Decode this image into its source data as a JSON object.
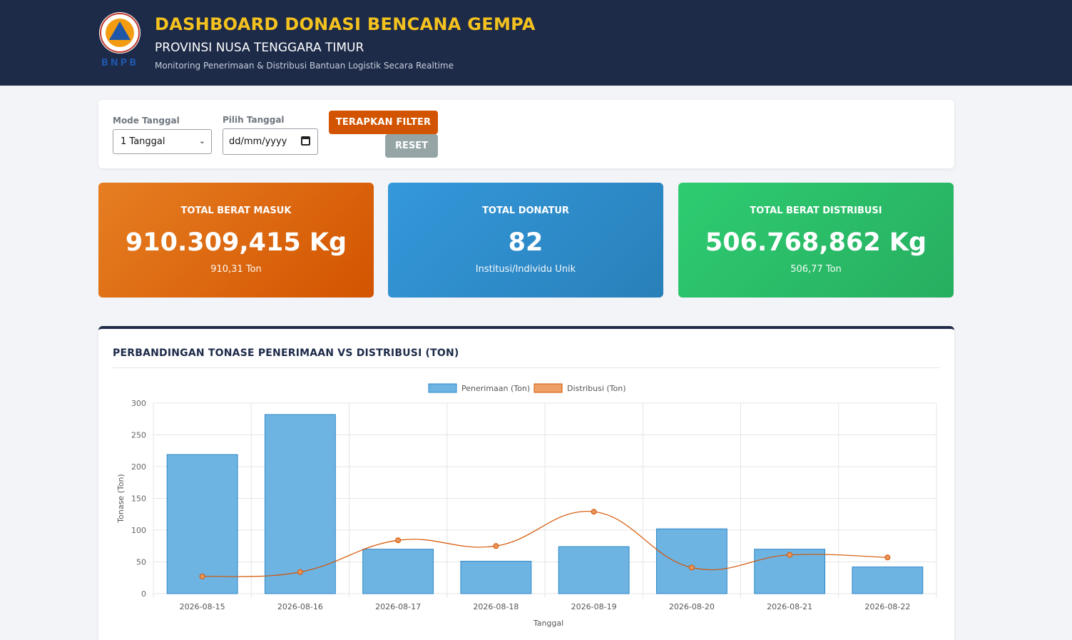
{
  "header": {
    "logo_text": "BNPB",
    "logo_ring_text": "BADAN NASIONAL PENANGGULANGAN BENCANA",
    "title": "DASHBOARD DONASI BENCANA GEMPA",
    "subtitle": "PROVINSI NUSA TENGGARA TIMUR",
    "tagline": "Monitoring Penerimaan & Distribusi Bantuan Logistik Secara Realtime"
  },
  "filter": {
    "mode_label": "Mode Tanggal",
    "mode_value": "1 Tanggal",
    "date_label": "Pilih Tanggal",
    "date_placeholder": "dd/mm/yyyy",
    "apply_label": "TERAPKAN FILTER",
    "reset_label": "RESET"
  },
  "stats": {
    "masuk": {
      "label": "TOTAL BERAT MASUK",
      "value": "910.309,415 Kg",
      "sub": "910,31 Ton"
    },
    "donatur": {
      "label": "TOTAL DONATUR",
      "value": "82",
      "sub": "Institusi/Individu Unik"
    },
    "distribusi": {
      "label": "TOTAL BERAT DISTRIBUSI",
      "value": "506.768,862 Kg",
      "sub": "506,77 Ton"
    }
  },
  "chart_section": {
    "title": "PERBANDINGAN TONASE PENERIMAAN VS DISTRIBUSI (TON)"
  },
  "colors": {
    "header_bg": "#1d2a48",
    "title_accent": "#f4c21f",
    "orange": "#d35400",
    "blue": "#3498db",
    "green": "#27ae60",
    "bar_fill": "#6eb4e3",
    "line_color": "#d35400"
  },
  "chart_data": {
    "type": "bar",
    "categories": [
      "2026-08-15",
      "2026-08-16",
      "2026-08-17",
      "2026-08-18",
      "2026-08-19",
      "2026-08-20",
      "2026-08-21",
      "2026-08-22"
    ],
    "series": [
      {
        "name": "Penerimaan (Ton)",
        "type": "bar",
        "values": [
          219,
          282,
          70,
          51,
          74,
          102,
          70,
          42
        ]
      },
      {
        "name": "Distribusi (Ton)",
        "type": "line",
        "smooth": true,
        "values": [
          27,
          34,
          84,
          75,
          129,
          41,
          61,
          57
        ]
      }
    ],
    "xlabel": "Tanggal",
    "ylabel": "Tonase (Ton)",
    "ylim": [
      0,
      300
    ],
    "yticks": [
      0,
      50,
      100,
      150,
      200,
      250,
      300
    ],
    "grid": true,
    "legend": "top-center"
  }
}
